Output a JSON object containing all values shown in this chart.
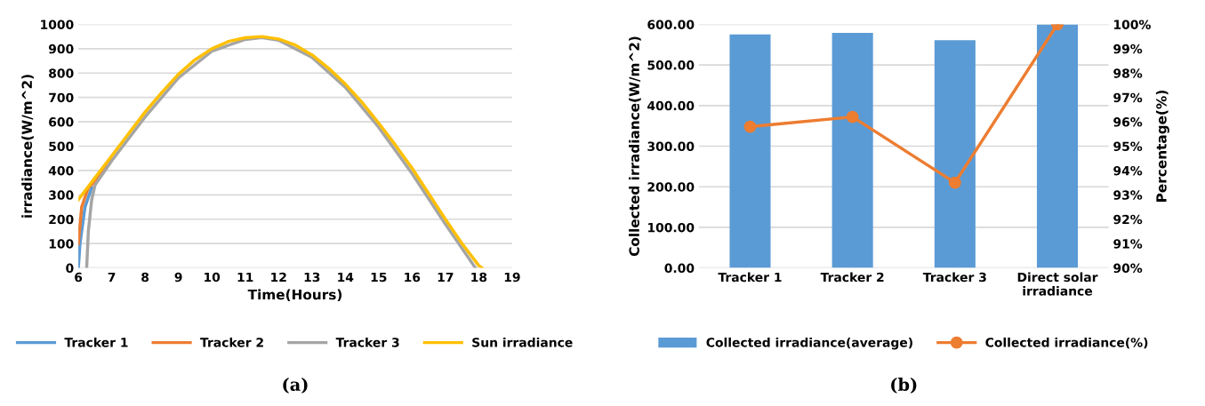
{
  "chart_data": [
    {
      "type": "line",
      "xlabel": "Time(Hours)",
      "ylabel": "irradiance(W/m^2)",
      "annotations": [
        "(a)"
      ],
      "xlim": [
        6,
        19
      ],
      "xticks": [
        6,
        7,
        8,
        9,
        10,
        11,
        12,
        13,
        14,
        15,
        16,
        17,
        18,
        19
      ],
      "ylim": [
        0,
        1000
      ],
      "yticks": [
        0,
        100,
        200,
        300,
        400,
        500,
        600,
        700,
        800,
        900,
        1000
      ],
      "grid": "y",
      "legend": "bottom",
      "marker": "none",
      "line_style": "solid",
      "series": [
        {
          "name": "Tracker 1",
          "color": "#5b9bd5",
          "x": [
            6,
            6.05,
            6.2,
            6.4
          ],
          "values": [
            0,
            100,
            250,
            330
          ]
        },
        {
          "name": "Tracker 2",
          "color": "#ed7d31",
          "x": [
            6,
            6.1,
            6.3,
            6.5,
            6.8,
            7
          ],
          "values": [
            100,
            250,
            330,
            355,
            410,
            445
          ]
        },
        {
          "name": "Tracker 3",
          "color": "#a5a5a5",
          "x": [
            6.25,
            6.3,
            6.4,
            6.5,
            7,
            8,
            9,
            10,
            11,
            11.5,
            12,
            13,
            14,
            15,
            16,
            17,
            17.9
          ],
          "values": [
            0,
            150,
            280,
            340,
            440,
            620,
            780,
            890,
            938,
            946,
            935,
            865,
            742,
            578,
            388,
            180,
            0
          ]
        },
        {
          "name": "Sun irradiance",
          "color": "#ffc000",
          "x": [
            6,
            6.5,
            7,
            7.5,
            8,
            8.5,
            9,
            9.5,
            10,
            10.5,
            11,
            11.5,
            12,
            12.5,
            13,
            13.5,
            14,
            14.5,
            15,
            15.5,
            16,
            16.5,
            17,
            17.5,
            18,
            18.1
          ],
          "values": [
            280,
            370,
            460,
            550,
            640,
            720,
            795,
            855,
            900,
            930,
            945,
            950,
            940,
            915,
            875,
            820,
            755,
            680,
            595,
            505,
            410,
            305,
            200,
            100,
            10,
            0
          ]
        }
      ]
    },
    {
      "type": "bar",
      "ylabel": "Collected irradiance(W/m^2)",
      "y2label": "Percentage(%)",
      "annotations": [
        "(b)"
      ],
      "categories": [
        "Tracker 1",
        "Tracker 2",
        "Tracker 3",
        "Direct solar\nirradiance"
      ],
      "ylim": [
        0,
        600
      ],
      "yticks": [
        {
          "value": 0,
          "label": "0.00"
        },
        {
          "value": 100,
          "label": "100.00"
        },
        {
          "value": 200,
          "label": "200.00"
        },
        {
          "value": 300,
          "label": "300.00"
        },
        {
          "value": 400,
          "label": "400.00"
        },
        {
          "value": 500,
          "label": "500.00"
        },
        {
          "value": 600,
          "label": "600.00"
        }
      ],
      "y2lim": [
        90,
        100
      ],
      "y2ticks": [
        {
          "value": 90,
          "label": "90%"
        },
        {
          "value": 91,
          "label": "91%"
        },
        {
          "value": 92,
          "label": "92%"
        },
        {
          "value": 93,
          "label": "93%"
        },
        {
          "value": 94,
          "label": "94%"
        },
        {
          "value": 95,
          "label": "95%"
        },
        {
          "value": 96,
          "label": "96%"
        },
        {
          "value": 97,
          "label": "97%"
        },
        {
          "value": 98,
          "label": "98%"
        },
        {
          "value": 99,
          "label": "99%"
        },
        {
          "value": 100,
          "label": "100%"
        }
      ],
      "grid": "y",
      "legend": "bottom",
      "series": [
        {
          "name": "Collected irradiance(average)",
          "color": "#5b9bd5",
          "values": [
            575,
            579,
            561,
            600
          ]
        },
        {
          "name": "Collected irradiance(%)",
          "color": "#ed7d31",
          "type": "line",
          "axis": "y2",
          "marker": "circle",
          "values": [
            95.8,
            96.2,
            93.5,
            100
          ]
        }
      ]
    }
  ]
}
